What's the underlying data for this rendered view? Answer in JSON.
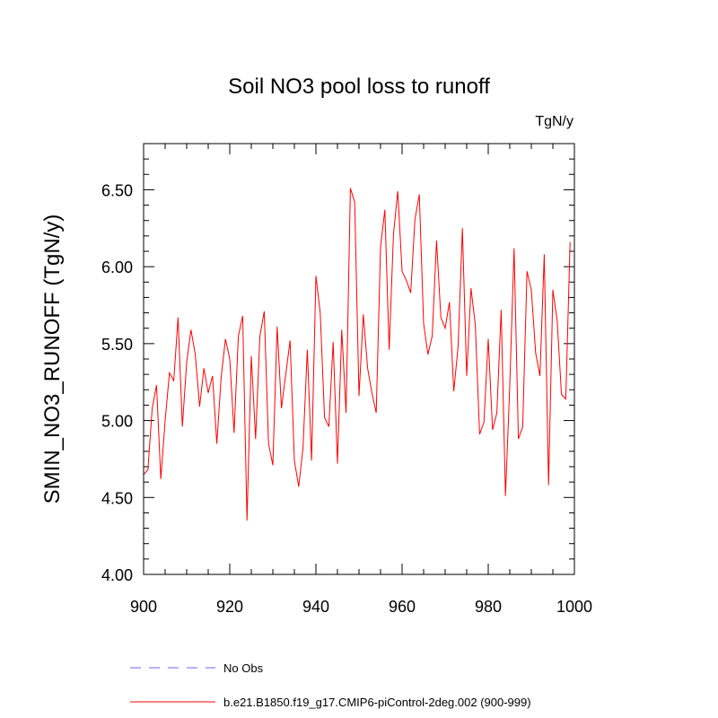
{
  "chart_data": {
    "type": "line",
    "title": "Soil NO3 pool loss to runoff",
    "units_label": "TgN/y",
    "xlabel": "",
    "ylabel": "SMIN_NO3_RUNOFF  (TgN/y)",
    "xlim": [
      900,
      1000
    ],
    "ylim": [
      4.0,
      6.8
    ],
    "x_ticks": [
      900,
      920,
      940,
      960,
      980,
      1000
    ],
    "x_tick_labels": [
      "900",
      "920",
      "940",
      "960",
      "980",
      "1000"
    ],
    "y_ticks": [
      4.0,
      4.5,
      5.0,
      5.5,
      6.0,
      6.5
    ],
    "y_tick_labels": [
      "4.00",
      "4.50",
      "5.00",
      "5.50",
      "6.00",
      "6.50"
    ],
    "series": [
      {
        "name": "b.e21.B1850.f19_g17.CMIP6-piControl-2deg.002 (900-999)",
        "color": "#ff0000",
        "dash": "solid",
        "x": [
          900,
          901,
          902,
          903,
          904,
          905,
          906,
          907,
          908,
          909,
          910,
          911,
          912,
          913,
          914,
          915,
          916,
          917,
          918,
          919,
          920,
          921,
          922,
          923,
          924,
          925,
          926,
          927,
          928,
          929,
          930,
          931,
          932,
          933,
          934,
          935,
          936,
          937,
          938,
          939,
          940,
          941,
          942,
          943,
          944,
          945,
          946,
          947,
          948,
          949,
          950,
          951,
          952,
          953,
          954,
          955,
          956,
          957,
          958,
          959,
          960,
          961,
          962,
          963,
          964,
          965,
          966,
          967,
          968,
          969,
          970,
          971,
          972,
          973,
          974,
          975,
          976,
          977,
          978,
          979,
          980,
          981,
          982,
          983,
          984,
          985,
          986,
          987,
          988,
          989,
          990,
          991,
          992,
          993,
          994,
          995,
          996,
          997,
          998,
          999
        ],
        "values": [
          4.65,
          4.68,
          5.08,
          5.23,
          4.62,
          5.0,
          5.31,
          5.26,
          5.67,
          4.96,
          5.38,
          5.59,
          5.43,
          5.09,
          5.34,
          5.18,
          5.29,
          4.85,
          5.28,
          5.53,
          5.4,
          4.92,
          5.55,
          5.68,
          4.35,
          5.42,
          4.88,
          5.55,
          5.71,
          4.85,
          4.71,
          5.61,
          5.08,
          5.3,
          5.52,
          4.74,
          4.57,
          4.82,
          5.46,
          4.74,
          5.94,
          5.7,
          5.02,
          4.96,
          5.51,
          4.72,
          5.59,
          5.05,
          6.51,
          6.42,
          5.16,
          5.69,
          5.34,
          5.18,
          5.05,
          6.13,
          6.37,
          5.46,
          6.21,
          6.49,
          5.97,
          5.91,
          5.83,
          6.31,
          6.47,
          5.63,
          5.43,
          5.55,
          6.17,
          5.67,
          5.6,
          5.77,
          5.19,
          5.48,
          6.25,
          5.29,
          5.86,
          5.62,
          4.91,
          4.99,
          5.53,
          4.94,
          5.05,
          5.72,
          4.51,
          5.23,
          6.12,
          4.88,
          4.96,
          5.97,
          5.85,
          5.44,
          5.29,
          6.08,
          4.58,
          5.85,
          5.65,
          5.17,
          5.14,
          6.16
        ]
      }
    ],
    "legend": [
      {
        "label": "No Obs",
        "color": "#6666ff",
        "dash": "dashed"
      },
      {
        "label": "b.e21.B1850.f19_g17.CMIP6-piControl-2deg.002 (900-999)",
        "color": "#ff0000",
        "dash": "solid"
      }
    ],
    "legend_position": "bottom-left",
    "grid": false
  }
}
